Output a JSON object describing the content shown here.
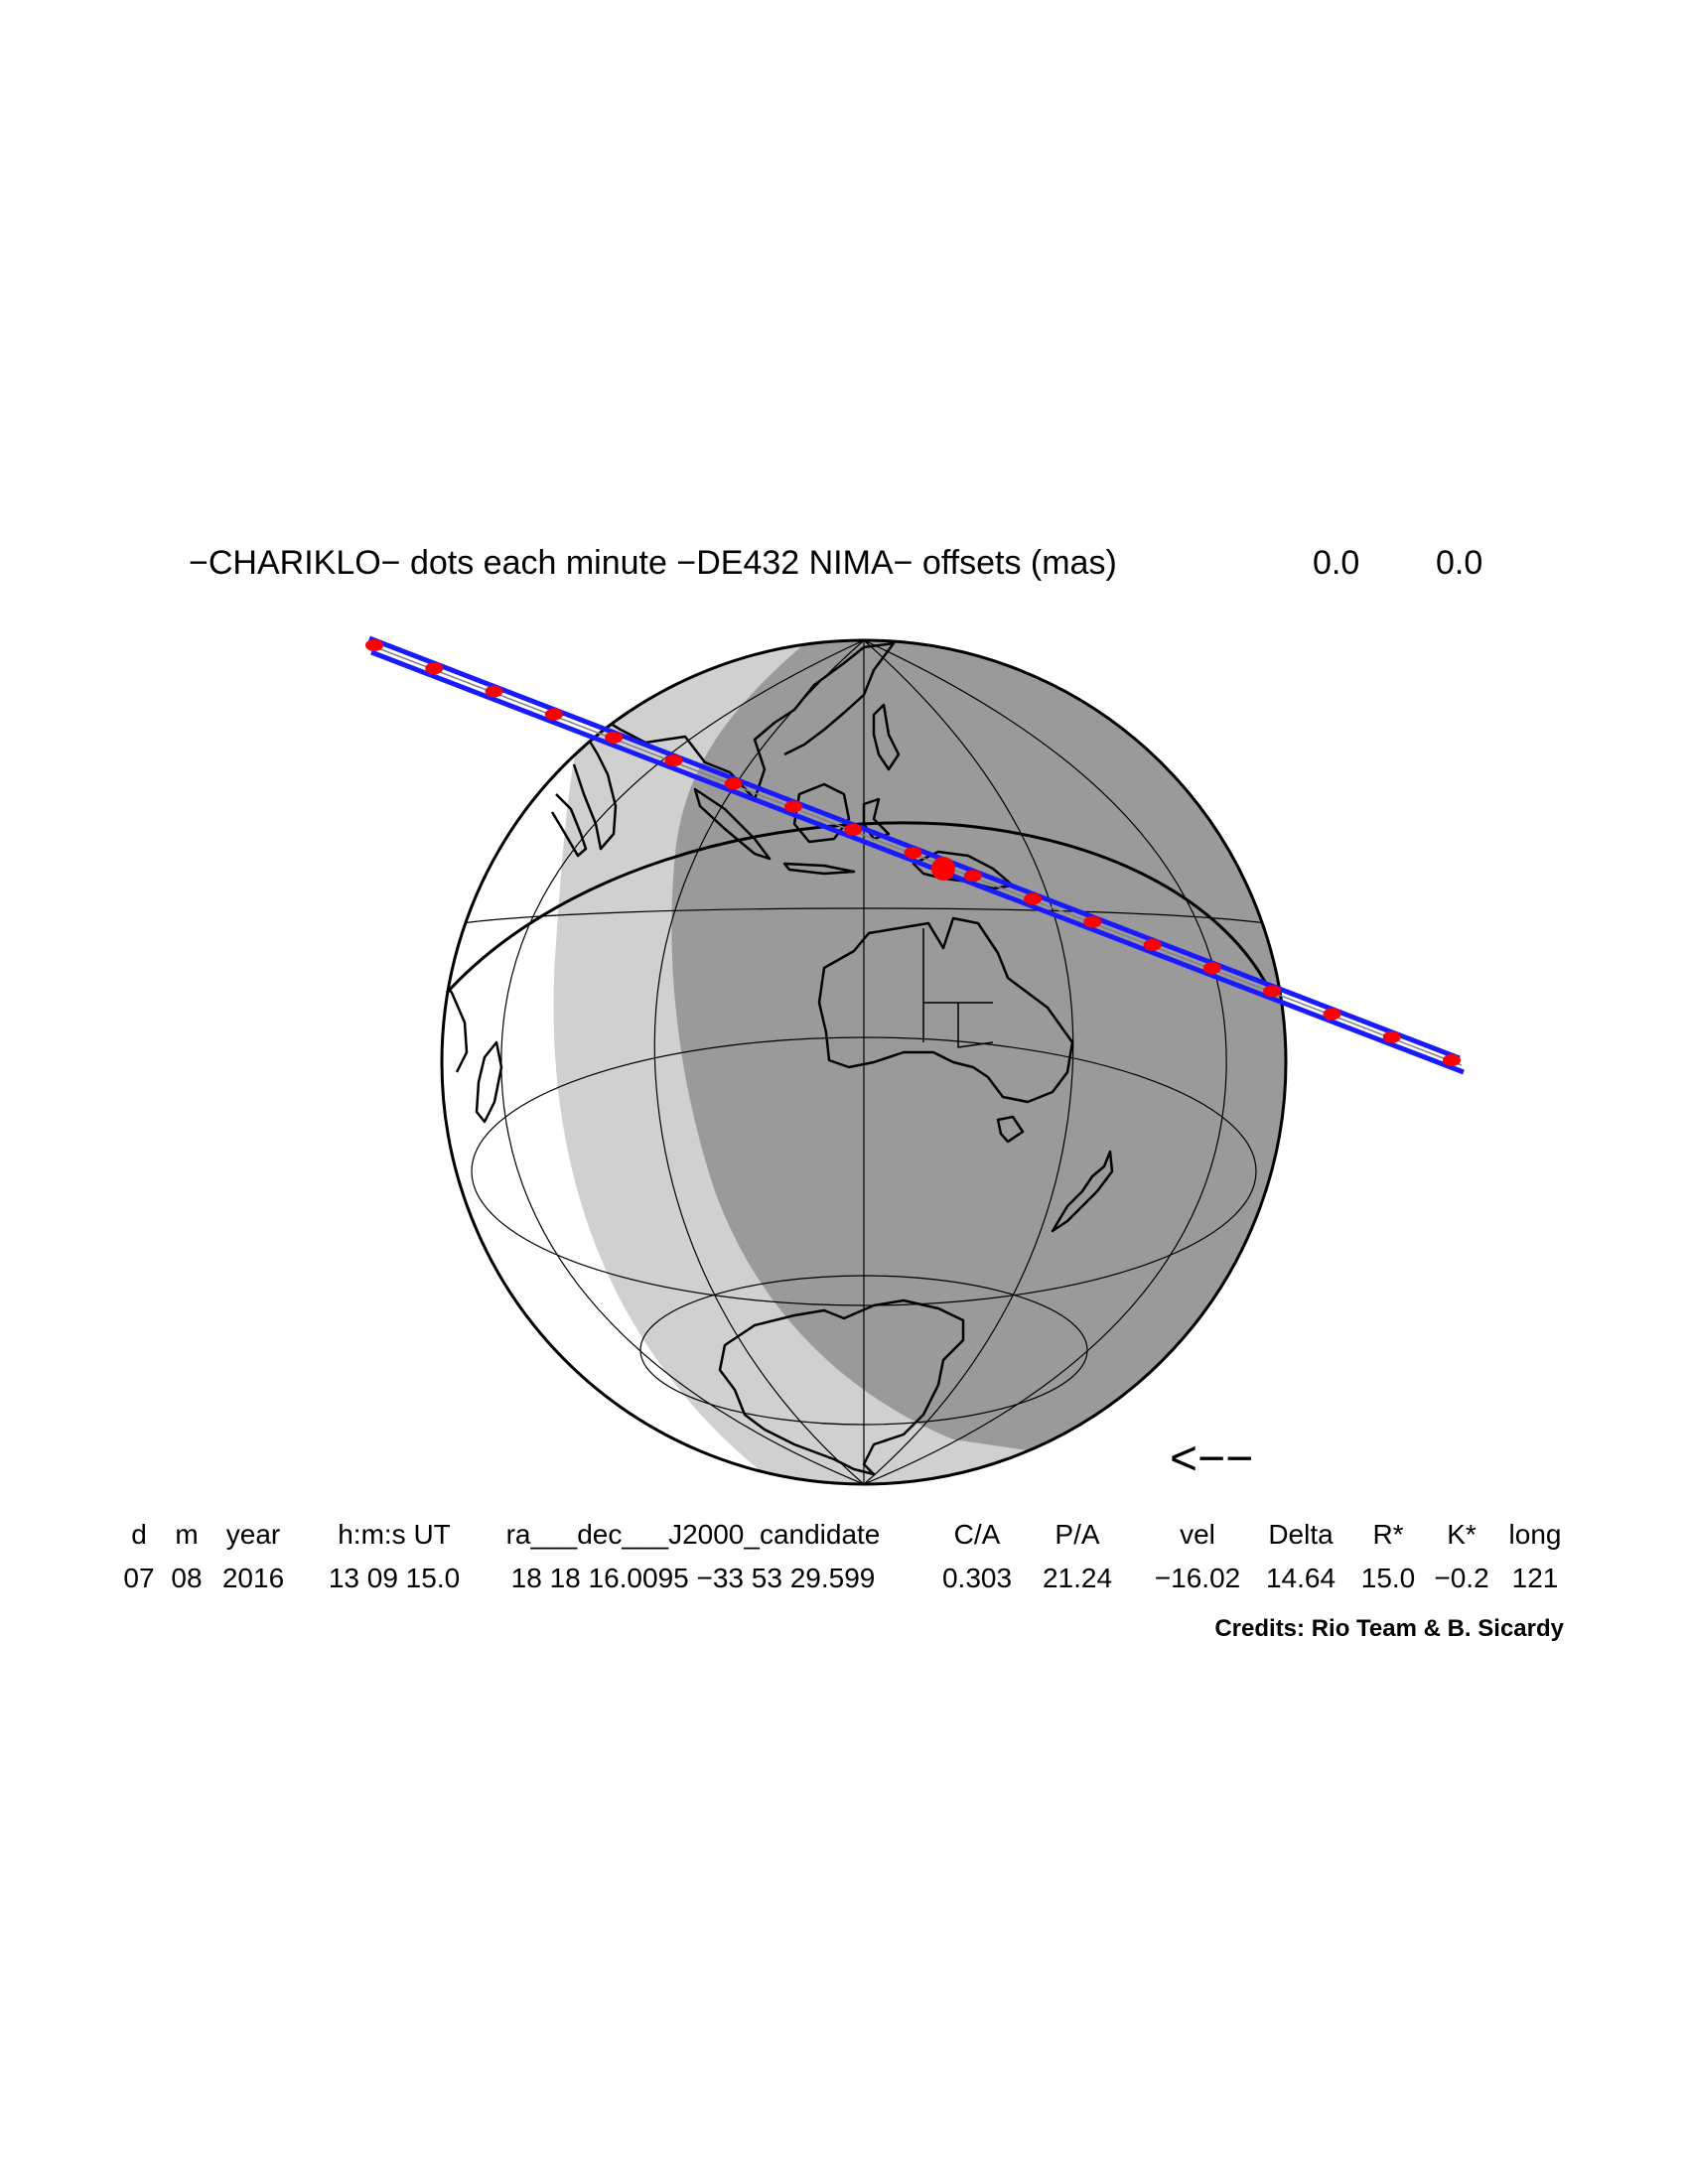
{
  "title": {
    "text": "−CHARIKLO− dots each minute −DE432 NIMA− offsets (mas)",
    "offset_1": "0.0",
    "offset_2": "0.0"
  },
  "direction_arrow": "<−−",
  "table": {
    "headers": [
      "d",
      "m",
      "year",
      "h:m:s UT",
      "ra___dec___J2000_candidate",
      "C/A",
      "P/A",
      "vel",
      "Delta",
      "R*",
      "K*",
      "long"
    ],
    "values": [
      "07",
      "08",
      "2016",
      "13 09 15.0",
      "18 18 16.0095 −33 53 29.599",
      "0.303",
      "21.24",
      "−16.02",
      "14.64",
      "15.0",
      "−0.2",
      "121"
    ]
  },
  "credits": "Credits: Rio Team & B. Sicardy",
  "colors": {
    "track": "#1a1aff",
    "dots": "#ff0000",
    "night": "#9a9a9a",
    "twilight": "#d0d0d0",
    "day": "#ffffff"
  }
}
